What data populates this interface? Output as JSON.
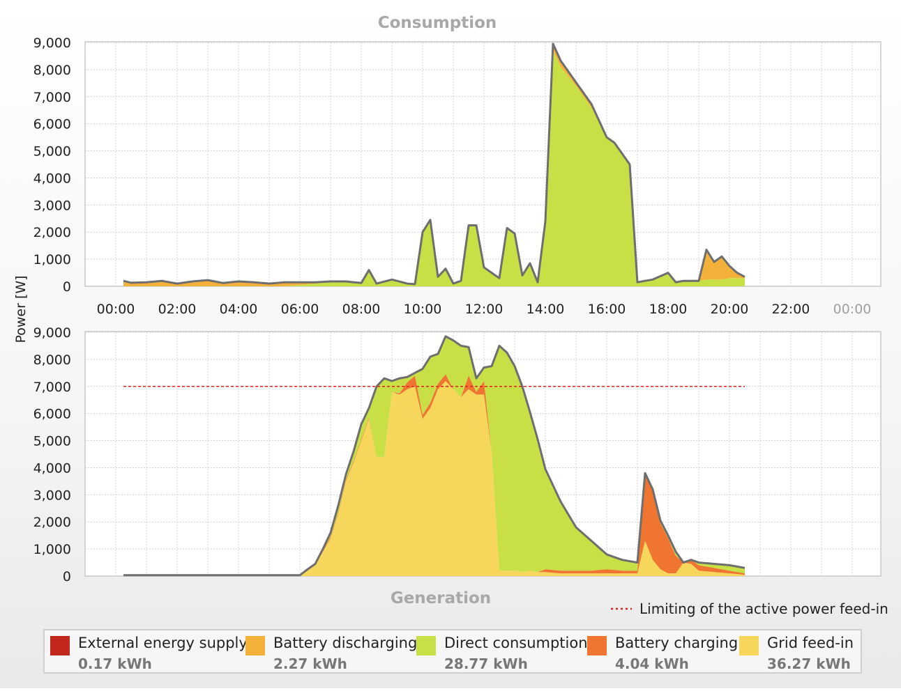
{
  "chart_data": [
    {
      "type": "area",
      "title": "Consumption",
      "ylabel": "Power [W]",
      "ylim": [
        0,
        9000
      ],
      "yticks": [
        "0",
        "1,000",
        "2,000",
        "3,000",
        "4,000",
        "5,000",
        "6,000",
        "7,000",
        "8,000",
        "9,000"
      ],
      "xticks": [
        "00:00",
        "02:00",
        "04:00",
        "06:00",
        "08:00",
        "10:00",
        "12:00",
        "14:00",
        "16:00",
        "18:00",
        "20:00",
        "22:00",
        "00:00"
      ],
      "x": [
        "00:15",
        "00:30",
        "01:00",
        "01:30",
        "02:00",
        "02:30",
        "03:00",
        "03:30",
        "04:00",
        "04:30",
        "05:00",
        "05:30",
        "06:00",
        "06:30",
        "07:00",
        "07:30",
        "08:00",
        "08:15",
        "08:30",
        "09:00",
        "09:30",
        "09:45",
        "10:00",
        "10:15",
        "10:30",
        "10:45",
        "11:00",
        "11:15",
        "11:30",
        "11:45",
        "12:00",
        "12:15",
        "12:30",
        "12:45",
        "13:00",
        "13:15",
        "13:30",
        "13:45",
        "14:00",
        "14:15",
        "14:30",
        "15:00",
        "15:30",
        "16:00",
        "16:15",
        "16:30",
        "16:45",
        "17:00",
        "17:15",
        "17:30",
        "18:00",
        "18:15",
        "18:30",
        "19:00",
        "19:15",
        "19:30",
        "19:45",
        "20:00",
        "20:15",
        "20:30"
      ],
      "series": [
        {
          "name": "Direct consumption",
          "values": [
            0,
            0,
            0,
            0,
            0,
            0,
            0,
            0,
            0,
            0,
            0,
            0,
            50,
            100,
            150,
            150,
            100,
            600,
            100,
            250,
            100,
            80,
            2000,
            2450,
            350,
            650,
            100,
            200,
            2250,
            2250,
            700,
            500,
            300,
            2150,
            1950,
            400,
            850,
            150,
            2400,
            8700,
            8100,
            7400,
            6600,
            5500,
            5300,
            4900,
            4500,
            150,
            200,
            250,
            500,
            150,
            200,
            200,
            250,
            250,
            250,
            300,
            300,
            300
          ]
        },
        {
          "name": "Battery discharging",
          "values": [
            200,
            130,
            150,
            200,
            100,
            180,
            230,
            120,
            180,
            150,
            100,
            150,
            100,
            50,
            30,
            30,
            20,
            0,
            0,
            0,
            0,
            0,
            0,
            0,
            0,
            0,
            0,
            0,
            0,
            0,
            0,
            0,
            0,
            0,
            0,
            0,
            0,
            0,
            0,
            200,
            200,
            100,
            100,
            0,
            0,
            0,
            0,
            0,
            0,
            0,
            0,
            0,
            0,
            0,
            1100,
            650,
            850,
            450,
            200,
            50
          ]
        },
        {
          "name": "External energy supply",
          "values": [
            0,
            0,
            0,
            0,
            0,
            0,
            0,
            0,
            0,
            0,
            0,
            0,
            0,
            0,
            0,
            0,
            0,
            0,
            0,
            0,
            0,
            0,
            0,
            0,
            0,
            0,
            0,
            0,
            0,
            0,
            0,
            0,
            0,
            0,
            0,
            0,
            0,
            0,
            0,
            50,
            30,
            30,
            30,
            0,
            0,
            0,
            0,
            0,
            0,
            0,
            0,
            0,
            0,
            0,
            0,
            0,
            0,
            0,
            0,
            0
          ]
        }
      ]
    },
    {
      "type": "area",
      "title": "Generation",
      "ylim": [
        0,
        9000
      ],
      "yticks": [
        "0",
        "1,000",
        "2,000",
        "3,000",
        "4,000",
        "5,000",
        "6,000",
        "7,000",
        "8,000",
        "9,000"
      ],
      "x": [
        "00:15",
        "05:45",
        "06:00",
        "06:15",
        "06:30",
        "06:45",
        "07:00",
        "07:15",
        "07:30",
        "07:45",
        "08:00",
        "08:15",
        "08:30",
        "08:45",
        "09:00",
        "09:15",
        "09:30",
        "09:45",
        "10:00",
        "10:15",
        "10:30",
        "10:45",
        "11:00",
        "11:15",
        "11:30",
        "11:45",
        "12:00",
        "12:15",
        "12:30",
        "12:45",
        "13:00",
        "13:15",
        "13:30",
        "13:45",
        "14:00",
        "14:30",
        "15:00",
        "15:30",
        "16:00",
        "16:30",
        "17:00",
        "17:15",
        "17:30",
        "17:45",
        "18:00",
        "18:15",
        "18:30",
        "18:45",
        "19:00",
        "19:30",
        "20:00",
        "20:30"
      ],
      "series": [
        {
          "name": "Grid feed-in",
          "values": [
            0,
            0,
            0,
            200,
            400,
            900,
            1400,
            2300,
            3500,
            4200,
            5000,
            5800,
            4400,
            4400,
            6800,
            6700,
            6900,
            7000,
            5800,
            6200,
            6900,
            7200,
            6900,
            6600,
            6900,
            6700,
            6700,
            4600,
            200,
            200,
            200,
            150,
            200,
            150,
            150,
            100,
            100,
            100,
            100,
            100,
            100,
            1300,
            600,
            250,
            100,
            100,
            500,
            450,
            200,
            150,
            100,
            50
          ]
        },
        {
          "name": "Battery charging",
          "values": [
            0,
            0,
            0,
            50,
            50,
            50,
            50,
            50,
            50,
            50,
            50,
            50,
            0,
            0,
            0,
            50,
            250,
            400,
            150,
            200,
            200,
            250,
            0,
            0,
            500,
            100,
            500,
            0,
            0,
            0,
            0,
            0,
            0,
            0,
            100,
            100,
            100,
            100,
            150,
            100,
            100,
            2500,
            2500,
            1700,
            1300,
            650,
            0,
            150,
            200,
            150,
            100,
            50
          ]
        },
        {
          "name": "Direct consumption",
          "values": [
            30,
            30,
            30,
            0,
            0,
            50,
            150,
            250,
            200,
            350,
            550,
            350,
            2600,
            2900,
            400,
            550,
            200,
            100,
            1700,
            1700,
            1100,
            1400,
            1800,
            1900,
            1050,
            500,
            500,
            3150,
            8300,
            8050,
            7550,
            6850,
            5850,
            4900,
            3700,
            2550,
            1600,
            1100,
            550,
            400,
            300,
            0,
            100,
            100,
            100,
            150,
            0,
            0,
            100,
            150,
            200,
            200
          ]
        }
      ],
      "limit_line": {
        "name": "Limiting of the active power feed-in",
        "value": 7000
      }
    }
  ],
  "legend": [
    {
      "label": "External energy supply",
      "value": "0.17 kWh",
      "color": "#c1271c"
    },
    {
      "label": "Battery discharging",
      "value": "2.27 kWh",
      "color": "#f3b13a"
    },
    {
      "label": "Direct consumption",
      "value": "28.77 kWh",
      "color": "#c8df45"
    },
    {
      "label": "Battery charging",
      "value": "4.04 kWh",
      "color": "#ef7531"
    },
    {
      "label": "Grid feed-in",
      "value": "36.27 kWh",
      "color": "#f6d75b"
    }
  ],
  "colors": {
    "outline": "#6e6e6e",
    "limit_line": "#e02020",
    "grid": "#d4d4d4"
  }
}
